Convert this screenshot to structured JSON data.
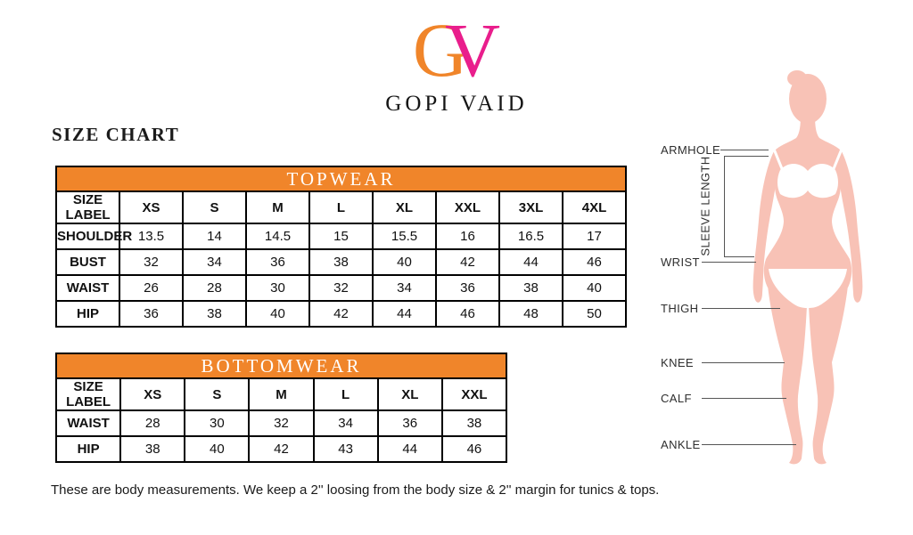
{
  "brand": {
    "logo_g": "G",
    "logo_v": "V",
    "name": "GOPI VAID"
  },
  "page_title": "SIZE CHART",
  "tables": {
    "topwear": {
      "title": "TOPWEAR",
      "columns": [
        "SIZE LABEL",
        "XS",
        "S",
        "M",
        "L",
        "XL",
        "XXL",
        "3XL",
        "4XL"
      ],
      "rows": [
        {
          "label": "SHOULDER",
          "values": [
            "13.5",
            "14",
            "14.5",
            "15",
            "15.5",
            "16",
            "16.5",
            "17"
          ]
        },
        {
          "label": "BUST",
          "values": [
            "32",
            "34",
            "36",
            "38",
            "40",
            "42",
            "44",
            "46"
          ]
        },
        {
          "label": "WAIST",
          "values": [
            "26",
            "28",
            "30",
            "32",
            "34",
            "36",
            "38",
            "40"
          ]
        },
        {
          "label": "HIP",
          "values": [
            "36",
            "38",
            "40",
            "42",
            "44",
            "46",
            "48",
            "50"
          ]
        }
      ]
    },
    "bottomwear": {
      "title": "BOTTOMWEAR",
      "columns": [
        "SIZE LABEL",
        "XS",
        "S",
        "M",
        "L",
        "XL",
        "XXL"
      ],
      "rows": [
        {
          "label": "WAIST",
          "values": [
            "28",
            "30",
            "32",
            "34",
            "36",
            "38"
          ]
        },
        {
          "label": "HIP",
          "values": [
            "38",
            "40",
            "42",
            "43",
            "44",
            "46"
          ]
        }
      ]
    }
  },
  "figure": {
    "armhole": "ARMHOLE",
    "sleeve_length": "SLEEVE LENGTH",
    "wrist": "WRIST",
    "thigh": "THIGH",
    "knee": "KNEE",
    "calf": "CALF",
    "ankle": "ANKLE"
  },
  "footer": {
    "note": "These are body measurements. We keep a 2'' loosing from the body size & 2'' margin for tunics & tops."
  },
  "colors": {
    "accent_orange": "#F0852A",
    "brand_pink": "#E91E8C",
    "body_silhouette": "#F8C2B6",
    "table_border": "#000000",
    "guide_line": "#555555"
  }
}
